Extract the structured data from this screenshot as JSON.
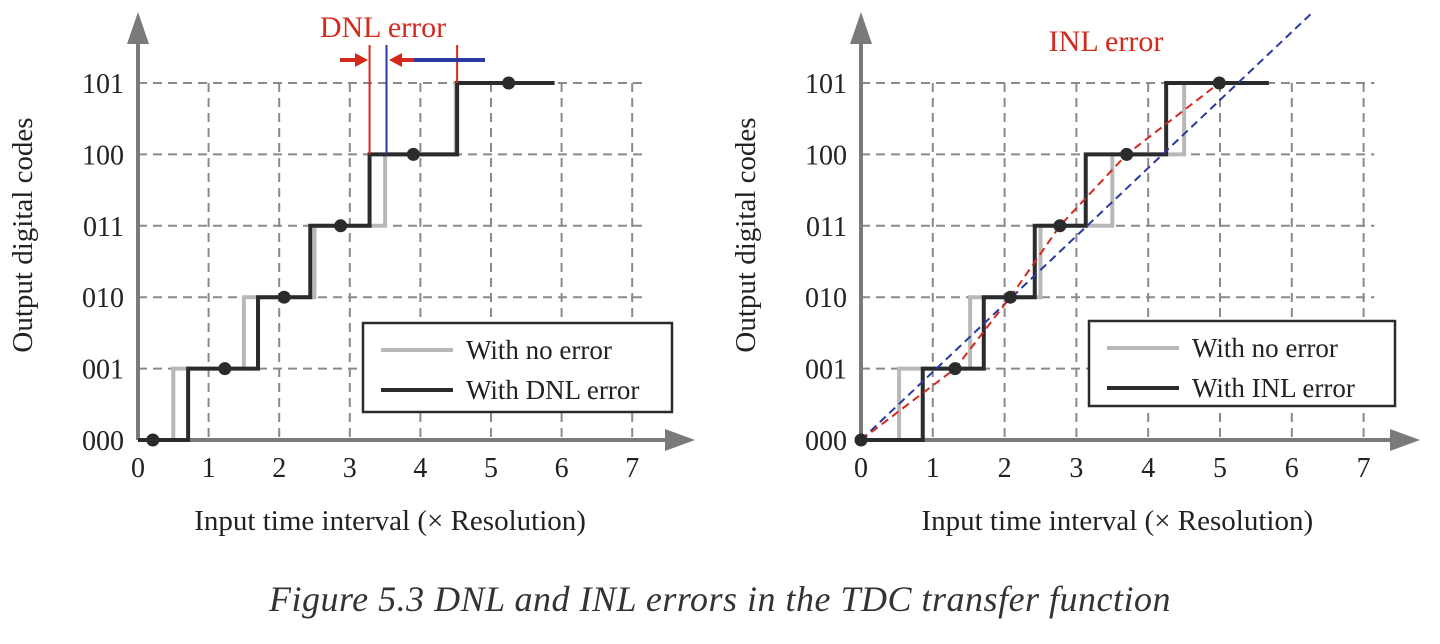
{
  "caption": "Figure 5.3   DNL and INL errors in the TDC transfer function",
  "colors": {
    "ideal": "#b8b8b8",
    "actual": "#2b2b2e",
    "grid": "#8a8a8a",
    "axis": "#7a7a7a",
    "red": "#d42a1e",
    "blue": "#2a3aa0"
  },
  "chart_data": [
    {
      "type": "line",
      "title": "DNL error",
      "xlabel": "Input time interval (× Resolution)",
      "ylabel": "Output digital codes",
      "xticks": [
        "0",
        "1",
        "2",
        "3",
        "4",
        "5",
        "6",
        "7"
      ],
      "yticks": [
        "000",
        "001",
        "010",
        "011",
        "100",
        "101"
      ],
      "xlim": [
        0,
        7.6
      ],
      "ylim": [
        0,
        5
      ],
      "grid": true,
      "legend_position": "bottom-right",
      "series": [
        {
          "name": "With no error",
          "kind": "step",
          "transitions": [
            0.5,
            1.5,
            2.5,
            3.5,
            4.5
          ],
          "x_end": 5.9
        },
        {
          "name": "With DNL error",
          "kind": "step",
          "transitions": [
            0.71,
            1.7,
            2.44,
            3.28,
            4.52
          ],
          "x_end": 5.9,
          "points": [
            [
              0.21,
              0
            ],
            [
              1.23,
              1
            ],
            [
              2.07,
              2
            ],
            [
              2.87,
              3
            ],
            [
              3.9,
              4
            ],
            [
              5.25,
              5
            ]
          ]
        }
      ],
      "annotations": {
        "red_lines": [
          3.28,
          4.52
        ],
        "blue_line": 3.52
      }
    },
    {
      "type": "line",
      "title": "INL error",
      "xlabel": "Input time interval (× Resolution)",
      "ylabel": "Output digital codes",
      "xticks": [
        "0",
        "1",
        "2",
        "3",
        "4",
        "5",
        "6",
        "7"
      ],
      "yticks": [
        "000",
        "001",
        "010",
        "011",
        "100",
        "101"
      ],
      "xlim": [
        0,
        7.6
      ],
      "ylim": [
        0,
        5
      ],
      "grid": true,
      "legend_position": "bottom-right",
      "series": [
        {
          "name": "With no error",
          "kind": "step",
          "transitions": [
            0.53,
            1.52,
            2.5,
            3.5,
            4.5
          ],
          "x_end": 5.68
        },
        {
          "name": "With INL error",
          "kind": "step",
          "transitions": [
            0.86,
            1.71,
            2.42,
            3.13,
            4.25
          ],
          "x_end": 5.68,
          "points": [
            [
              0,
              0
            ],
            [
              1.31,
              1
            ],
            [
              2.08,
              2
            ],
            [
              2.77,
              3
            ],
            [
              3.7,
              4
            ],
            [
              4.99,
              5
            ]
          ]
        },
        {
          "name": "Ideal line",
          "kind": "dashed",
          "points": [
            [
              0,
              0
            ],
            [
              6.3,
              6.0
            ]
          ]
        },
        {
          "name": "Actual fit",
          "kind": "dashed",
          "points": [
            [
              0,
              0
            ],
            [
              1.31,
              1
            ],
            [
              2.08,
              2
            ],
            [
              2.77,
              3
            ],
            [
              3.7,
              4
            ],
            [
              4.99,
              5
            ]
          ]
        }
      ]
    }
  ]
}
